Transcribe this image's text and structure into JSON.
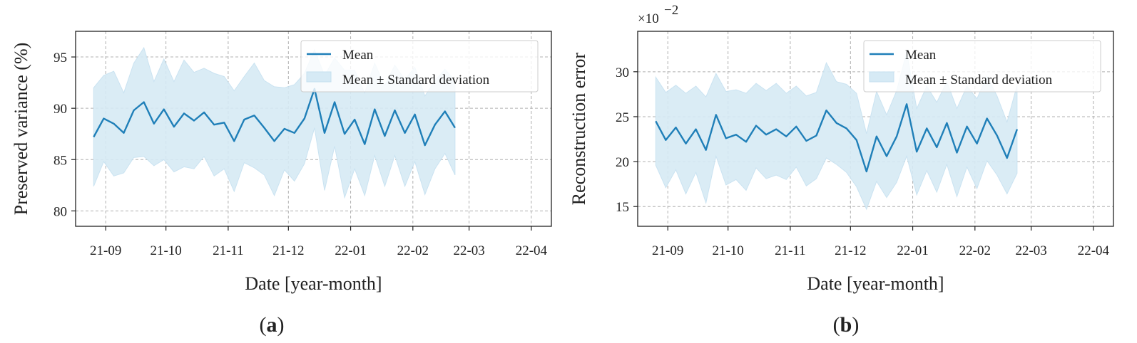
{
  "colors": {
    "mean": "#1f7fb8",
    "band": "#d6eaf5",
    "band_stroke": "#c5e0f0"
  },
  "chart_data": [
    {
      "type": "line",
      "panel_label": "a",
      "xlabel": "Date [year-month]",
      "ylabel": "Preserved variance (%)",
      "y_multiplier": "",
      "ylim": [
        78.5,
        97.5
      ],
      "yticks": [
        80,
        85,
        90,
        95
      ],
      "x_range_days": [
        0,
        237
      ],
      "xtick_days": [
        15,
        45,
        76,
        106,
        137,
        168,
        196,
        227
      ],
      "xtick_labels": [
        "21-09",
        "21-10",
        "21-11",
        "21-12",
        "22-01",
        "22-02",
        "22-03",
        "22-04"
      ],
      "legend": {
        "position": "top-right",
        "mean_label": "Mean",
        "band_label": "Mean ± Standard deviation"
      },
      "series": [
        {
          "name": "Mean",
          "start_day": 9,
          "step_days": 5,
          "values": [
            87.2,
            89.0,
            88.5,
            87.6,
            89.8,
            90.6,
            88.5,
            89.9,
            88.2,
            89.5,
            88.8,
            89.6,
            88.4,
            88.6,
            86.8,
            88.9,
            89.3,
            88.1,
            86.8,
            88.0,
            87.6,
            89.0,
            91.9,
            87.6,
            90.6,
            87.5,
            88.9,
            86.5,
            89.9,
            87.3,
            89.8,
            87.6,
            89.4,
            86.4,
            88.4,
            89.7,
            88.1
          ]
        }
      ],
      "std": [
        4.8,
        4.2,
        5.1,
        3.9,
        4.6,
        5.3,
        4.1,
        4.9,
        4.4,
        5.2,
        4.7,
        4.3,
        5.0,
        4.5,
        4.9,
        4.2,
        5.1,
        4.6,
        5.3,
        4.0,
        4.7,
        4.4,
        3.8,
        5.6,
        4.3,
        6.2,
        4.8,
        5.0,
        4.5,
        4.9,
        4.4,
        5.2,
        4.6,
        4.8,
        4.3,
        4.1,
        4.6
      ]
    },
    {
      "type": "line",
      "panel_label": "b",
      "xlabel": "Date [year-month]",
      "ylabel": "Reconstruction error",
      "y_multiplier": "×10",
      "y_multiplier_exp": "−2",
      "ylim": [
        12.8,
        34.5
      ],
      "yticks": [
        15,
        20,
        25,
        30
      ],
      "x_range_days": [
        0,
        237
      ],
      "xtick_days": [
        15,
        45,
        76,
        106,
        137,
        168,
        196,
        227
      ],
      "xtick_labels": [
        "21-09",
        "21-10",
        "21-11",
        "21-12",
        "22-01",
        "22-02",
        "22-03",
        "22-04"
      ],
      "legend": {
        "position": "top-right",
        "mean_label": "Mean",
        "band_label": "Mean ± Standard deviation"
      },
      "series": [
        {
          "name": "Mean",
          "start_day": 9,
          "step_days": 5,
          "values": [
            24.5,
            22.4,
            23.8,
            22.0,
            23.6,
            21.3,
            25.2,
            22.6,
            23.0,
            22.2,
            24.0,
            23.0,
            23.6,
            22.8,
            23.9,
            22.3,
            22.9,
            25.7,
            24.3,
            23.7,
            22.4,
            18.9,
            22.8,
            20.6,
            22.8,
            26.4,
            21.1,
            23.7,
            21.6,
            24.3,
            21.0,
            23.9,
            22.0,
            24.8,
            22.9,
            20.4,
            23.6
          ]
        }
      ],
      "std": [
        4.9,
        5.3,
        4.7,
        5.6,
        4.8,
        5.9,
        4.6,
        5.2,
        5.0,
        5.4,
        4.7,
        4.9,
        5.1,
        4.8,
        4.5,
        5.0,
        4.8,
        5.3,
        4.6,
        4.9,
        5.2,
        4.2,
        5.0,
        4.6,
        5.1,
        5.8,
        4.8,
        4.7,
        5.0,
        4.6,
        4.9,
        4.5,
        5.0,
        4.7,
        4.4,
        4.0,
        4.9
      ]
    }
  ]
}
